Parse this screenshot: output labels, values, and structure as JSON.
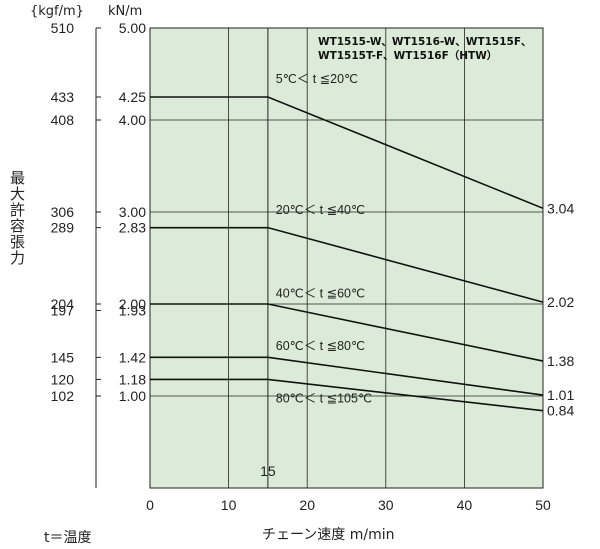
{
  "chart_data": {
    "type": "line",
    "title": "",
    "ylabel": "最大許容張力",
    "unit_kgf": "{kgf/m}",
    "unit_kn": "kN/m",
    "xlabel": "チェーン速度 m/min",
    "note": "t＝温度",
    "models_note": "WT1515-W、WT1516-W、WT1515F、WT1515T-F、WT1516F（HTW）",
    "xlim": [
      0,
      50
    ],
    "ylim": [
      0,
      5.0
    ],
    "x_ticks": [
      "0",
      "10",
      "20",
      "30",
      "40",
      "50"
    ],
    "x_marker": {
      "x": 15,
      "label": "15"
    },
    "y_kn_ticks": [
      {
        "v": 5.0,
        "label": "5.00"
      },
      {
        "v": 4.25,
        "label": "4.25"
      },
      {
        "v": 4.0,
        "label": "4.00"
      },
      {
        "v": 3.0,
        "label": "3.00"
      },
      {
        "v": 2.83,
        "label": "2.83"
      },
      {
        "v": 2.0,
        "label": "2.00"
      },
      {
        "v": 1.93,
        "label": "1.93"
      },
      {
        "v": 1.42,
        "label": "1.42"
      },
      {
        "v": 1.18,
        "label": "1.18"
      },
      {
        "v": 1.0,
        "label": "1.00"
      }
    ],
    "y_kgf_ticks": [
      {
        "v": 5.0,
        "label": "510"
      },
      {
        "v": 4.25,
        "label": "433"
      },
      {
        "v": 4.0,
        "label": "408"
      },
      {
        "v": 3.0,
        "label": "306"
      },
      {
        "v": 2.83,
        "label": "289"
      },
      {
        "v": 2.0,
        "label": "204"
      },
      {
        "v": 1.93,
        "label": "197"
      },
      {
        "v": 1.42,
        "label": "145"
      },
      {
        "v": 1.18,
        "label": "120"
      },
      {
        "v": 1.0,
        "label": "102"
      }
    ],
    "series": [
      {
        "name": "5℃＜ t ≦20℃",
        "x": [
          0,
          15,
          50
        ],
        "y": [
          4.25,
          4.25,
          3.04
        ],
        "end_label": "3.04"
      },
      {
        "name": "20℃＜ t ≦40℃",
        "x": [
          0,
          15,
          50
        ],
        "y": [
          2.83,
          2.83,
          2.02
        ],
        "end_label": "2.02"
      },
      {
        "name": "40℃＜ t ≦60℃",
        "x": [
          0,
          15,
          50
        ],
        "y": [
          2.0,
          2.0,
          1.38
        ],
        "end_label": "1.38"
      },
      {
        "name": "60℃＜ t ≦80℃",
        "x": [
          0,
          15,
          50
        ],
        "y": [
          1.42,
          1.42,
          1.01
        ],
        "end_label": "1.01"
      },
      {
        "name": "80℃＜ t ≦105℃",
        "x": [
          0,
          15,
          50
        ],
        "y": [
          1.18,
          1.18,
          0.84
        ],
        "end_label": "0.84"
      }
    ],
    "series_label_pos": [
      {
        "x": 16,
        "y": 4.4
      },
      {
        "x": 16,
        "y": 2.98
      },
      {
        "x": 16,
        "y": 2.07
      },
      {
        "x": 16,
        "y": 1.5
      },
      {
        "x": 16,
        "y": 0.93
      }
    ],
    "grid": true,
    "background": "#dcebd7",
    "line_color": "#111111"
  }
}
